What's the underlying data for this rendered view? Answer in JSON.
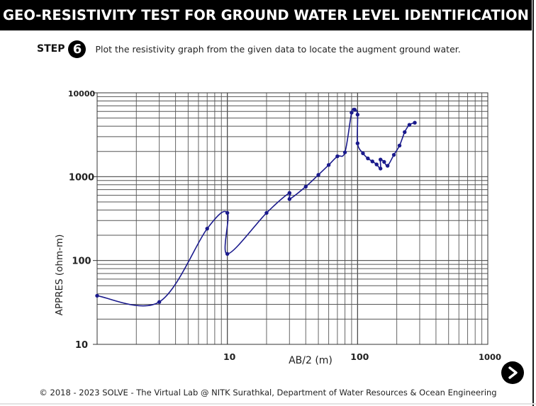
{
  "header": {
    "title": "GEO-RESISTIVITY TEST FOR GROUND WATER LEVEL IDENTIFICATION"
  },
  "step": {
    "label": "STEP",
    "number": "6",
    "instruction": "Plot the resistivity graph from the given data to locate the augment ground water."
  },
  "chart_data": {
    "type": "line",
    "title": "",
    "xlabel": "AB/2 (m)",
    "ylabel": "APPRES (ohm-m)",
    "xscale": "log",
    "yscale": "log",
    "xlim": [
      1,
      1000
    ],
    "ylim": [
      10,
      10000
    ],
    "x_tick_labels": [
      {
        "value": 10,
        "label": "10"
      },
      {
        "value": 100,
        "label": "100"
      },
      {
        "value": 1000,
        "label": "1000"
      }
    ],
    "y_tick_labels": [
      {
        "value": 10,
        "label": "10"
      },
      {
        "value": 100,
        "label": "100"
      },
      {
        "value": 1000,
        "label": "1000"
      },
      {
        "value": 10000,
        "label": "10000"
      }
    ],
    "grid": true,
    "line_color": "#1a1a8c",
    "points": [
      {
        "x": 1,
        "y": 38
      },
      {
        "x": 3,
        "y": 32
      },
      {
        "x": 7,
        "y": 240
      },
      {
        "x": 10,
        "y": 370
      },
      {
        "x": 10,
        "y": 120
      },
      {
        "x": 20,
        "y": 370
      },
      {
        "x": 30,
        "y": 640
      },
      {
        "x": 30,
        "y": 540
      },
      {
        "x": 40,
        "y": 760
      },
      {
        "x": 50,
        "y": 1050
      },
      {
        "x": 60,
        "y": 1380
      },
      {
        "x": 70,
        "y": 1750
      },
      {
        "x": 80,
        "y": 1950
      },
      {
        "x": 90,
        "y": 5800
      },
      {
        "x": 95,
        "y": 6300
      },
      {
        "x": 100,
        "y": 5500
      },
      {
        "x": 100,
        "y": 2500
      },
      {
        "x": 110,
        "y": 1900
      },
      {
        "x": 120,
        "y": 1650
      },
      {
        "x": 130,
        "y": 1520
      },
      {
        "x": 140,
        "y": 1400
      },
      {
        "x": 150,
        "y": 1250
      },
      {
        "x": 150,
        "y": 1600
      },
      {
        "x": 160,
        "y": 1500
      },
      {
        "x": 170,
        "y": 1350
      },
      {
        "x": 190,
        "y": 1820
      },
      {
        "x": 210,
        "y": 2350
      },
      {
        "x": 230,
        "y": 3400
      },
      {
        "x": 250,
        "y": 4150
      },
      {
        "x": 275,
        "y": 4400
      }
    ]
  },
  "next": {
    "icon": "next-arrow-icon"
  },
  "footer": {
    "text": "© 2018 - 2023 SOLVE - The Virtual Lab @ NITK Surathkal, Department of Water Resources & Ocean Engineering"
  }
}
